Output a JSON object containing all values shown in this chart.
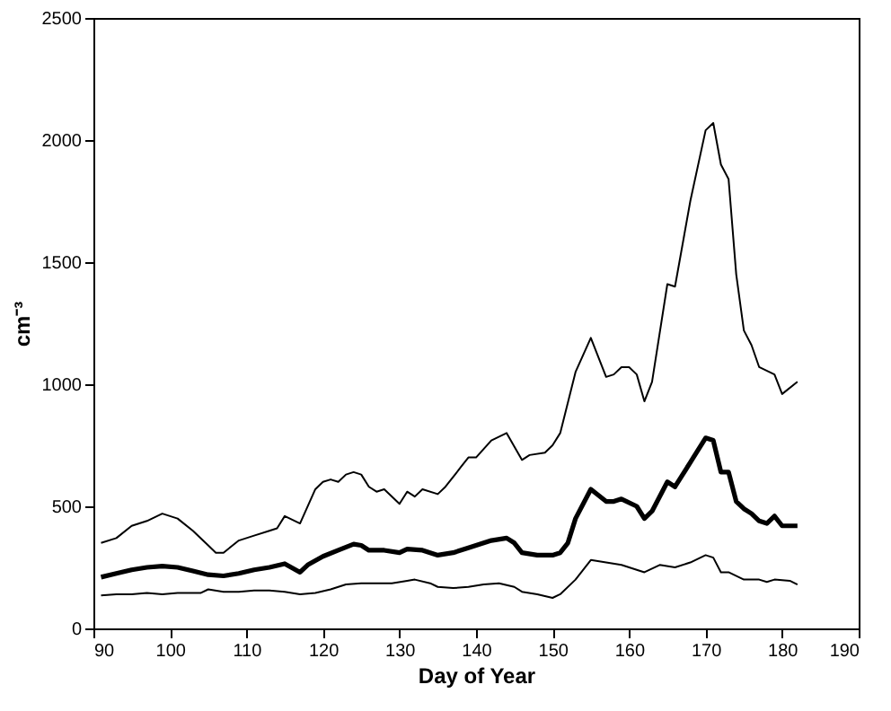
{
  "chart_data": {
    "type": "line",
    "xlabel": "Day of Year",
    "ylabel": "cm⁻³",
    "xlim": [
      90,
      190
    ],
    "xticks": [
      90,
      100,
      110,
      120,
      130,
      140,
      150,
      160,
      170,
      180,
      190
    ],
    "ylim": [
      0,
      2500
    ],
    "yticks": [
      0,
      500,
      1000,
      1500,
      2000,
      2500
    ],
    "grid": false,
    "marker": "none",
    "line_style": "solid",
    "series": [
      {
        "color": "#000000",
        "x": [
          91,
          93,
          95,
          97,
          99,
          101,
          103,
          105,
          106,
          107,
          109,
          111,
          113,
          114,
          115,
          117,
          119,
          120,
          121,
          122,
          123,
          124,
          125,
          126,
          127,
          128,
          130,
          131,
          132,
          133,
          135,
          136,
          138,
          139,
          140,
          142,
          144,
          146,
          147,
          149,
          150,
          151,
          153,
          155,
          157,
          158,
          159,
          160,
          161,
          162,
          163,
          165,
          166,
          168,
          170,
          171,
          172,
          173,
          174,
          175,
          176,
          177,
          179,
          180,
          182
        ],
        "values": [
          350,
          370,
          420,
          440,
          470,
          450,
          400,
          340,
          310,
          310,
          360,
          380,
          400,
          410,
          460,
          430,
          570,
          600,
          610,
          600,
          630,
          640,
          630,
          580,
          560,
          570,
          510,
          560,
          540,
          570,
          550,
          580,
          660,
          700,
          700,
          770,
          800,
          690,
          710,
          720,
          750,
          800,
          1050,
          1190,
          1030,
          1040,
          1070,
          1070,
          1040,
          930,
          1010,
          1410,
          1400,
          1750,
          2040,
          2070,
          1900,
          1840,
          1450,
          1220,
          1160,
          1070,
          1040,
          960,
          1010
        ]
      },
      {
        "color": "#000000",
        "x": [
          91,
          93,
          95,
          97,
          99,
          101,
          103,
          105,
          107,
          109,
          111,
          113,
          115,
          117,
          118,
          120,
          122,
          124,
          125,
          126,
          128,
          130,
          131,
          133,
          135,
          137,
          139,
          140,
          142,
          144,
          145,
          146,
          148,
          150,
          151,
          152,
          153,
          155,
          157,
          158,
          159,
          161,
          162,
          163,
          165,
          166,
          168,
          170,
          171,
          172,
          173,
          174,
          175,
          176,
          177,
          178,
          179,
          180,
          182
        ],
        "values": [
          210,
          225,
          240,
          250,
          255,
          250,
          235,
          220,
          215,
          225,
          240,
          250,
          265,
          230,
          260,
          295,
          320,
          345,
          340,
          320,
          320,
          310,
          325,
          320,
          300,
          310,
          330,
          340,
          360,
          370,
          350,
          310,
          300,
          300,
          310,
          350,
          450,
          570,
          520,
          520,
          530,
          500,
          450,
          480,
          600,
          580,
          680,
          780,
          770,
          640,
          640,
          520,
          490,
          470,
          440,
          430,
          460,
          420,
          420
        ]
      },
      {
        "color": "#000000",
        "x": [
          91,
          93,
          95,
          97,
          99,
          101,
          103,
          104,
          105,
          107,
          109,
          111,
          113,
          115,
          117,
          119,
          121,
          123,
          125,
          127,
          129,
          131,
          132,
          134,
          135,
          137,
          139,
          141,
          143,
          145,
          146,
          148,
          150,
          151,
          153,
          155,
          157,
          159,
          161,
          162,
          164,
          166,
          168,
          170,
          171,
          172,
          173,
          175,
          177,
          178,
          179,
          181,
          182
        ],
        "values": [
          135,
          140,
          140,
          145,
          140,
          145,
          145,
          145,
          160,
          150,
          150,
          155,
          155,
          150,
          140,
          145,
          160,
          180,
          185,
          185,
          185,
          195,
          200,
          185,
          170,
          165,
          170,
          180,
          185,
          170,
          150,
          140,
          125,
          140,
          200,
          280,
          270,
          260,
          240,
          230,
          260,
          250,
          270,
          300,
          290,
          230,
          230,
          200,
          200,
          190,
          200,
          195,
          180
        ]
      }
    ]
  }
}
